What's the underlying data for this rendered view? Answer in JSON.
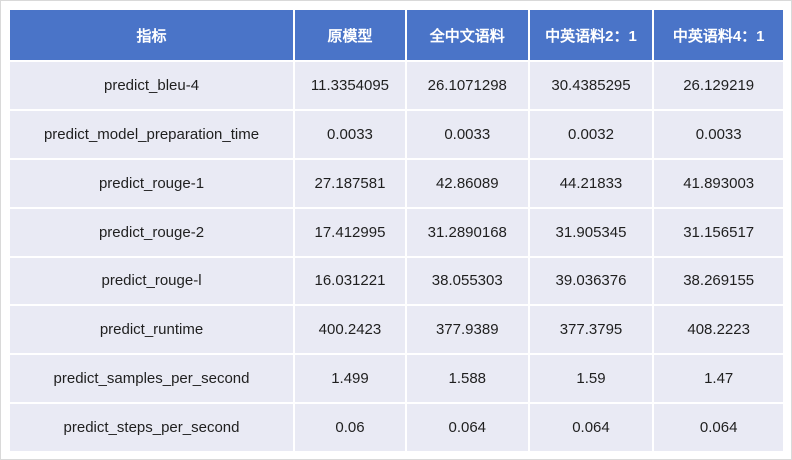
{
  "chart_data": {
    "type": "table",
    "title": "",
    "columns": [
      "指标",
      "原模型",
      "全中文语料",
      "中英语料2：1",
      "中英语料4：1"
    ],
    "rows": [
      [
        "predict_bleu-4",
        "11.3354095",
        "26.1071298",
        "30.4385295",
        "26.129219"
      ],
      [
        "predict_model_preparation_time",
        "0.0033",
        "0.0033",
        "0.0032",
        "0.0033"
      ],
      [
        "predict_rouge-1",
        "27.187581",
        "42.86089",
        "44.21833",
        "41.893003"
      ],
      [
        "predict_rouge-2",
        "17.412995",
        "31.2890168",
        "31.905345",
        "31.156517"
      ],
      [
        "predict_rouge-l",
        "16.031221",
        "38.055303",
        "39.036376",
        "38.269155"
      ],
      [
        "predict_runtime",
        "400.2423",
        "377.9389",
        "377.3795",
        "408.2223"
      ],
      [
        "predict_samples_per_second",
        "1.499",
        "1.588",
        "1.59",
        "1.47"
      ],
      [
        "predict_steps_per_second",
        "0.06",
        "0.064",
        "0.064",
        "0.064"
      ]
    ]
  },
  "colors": {
    "header_bg": "#4A74C8",
    "row_bg": "#E9EAF4",
    "header_text": "#FFFFFF",
    "cell_text": "#1F1F1F",
    "grid_gap": "#FFFFFF",
    "page_border": "#D9D9D9"
  }
}
